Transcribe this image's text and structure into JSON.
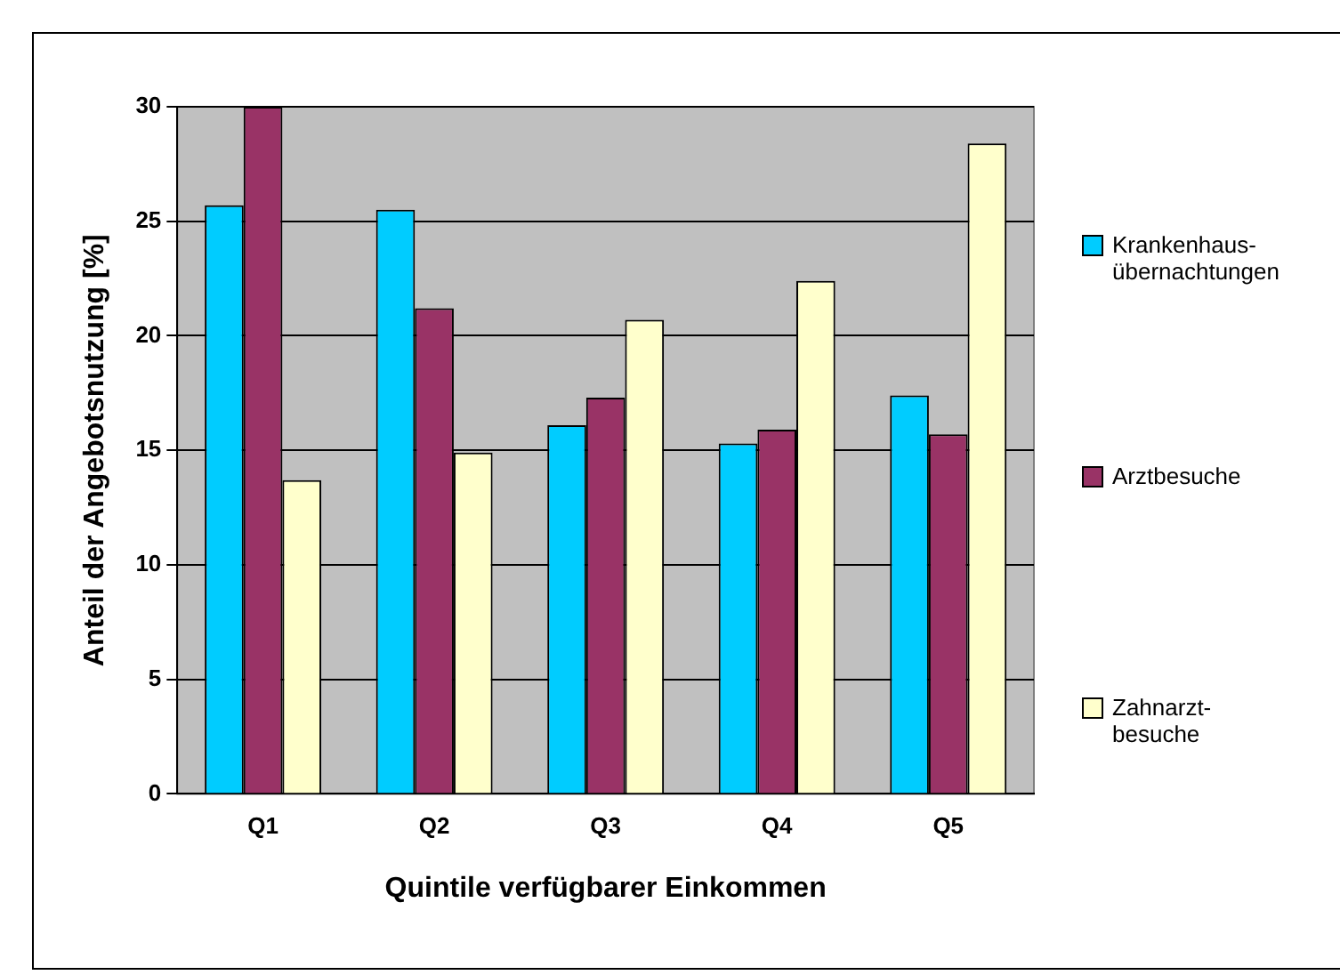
{
  "chart_data": {
    "type": "bar",
    "xlabel": "Quintile verfügbarer Einkommen",
    "ylabel": "Anteil der Angebotsnutzung [%]",
    "categories": [
      "Q1",
      "Q2",
      "Q3",
      "Q4",
      "Q5"
    ],
    "series": [
      {
        "name": "Krankenhaus-übernachtungen",
        "color": "#00ccff",
        "values": [
          25.7,
          25.5,
          16.1,
          15.3,
          17.4
        ]
      },
      {
        "name": "Arztbesuche",
        "color": "#993366",
        "values": [
          30,
          21.2,
          17.3,
          15.9,
          15.7
        ]
      },
      {
        "name": "Zahnarzt-besuche",
        "color": "#ffffcc",
        "values": [
          13.7,
          14.9,
          20.7,
          22.4,
          28.4
        ]
      }
    ],
    "ylim": [
      0,
      30
    ],
    "yticks": [
      0,
      5,
      10,
      15,
      20,
      25,
      30
    ],
    "grid": "y",
    "legend": "right"
  }
}
